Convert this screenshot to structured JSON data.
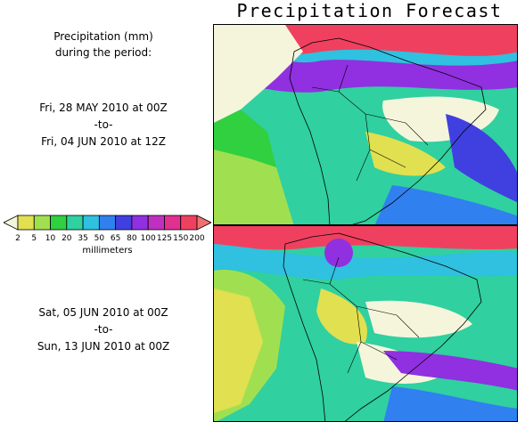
{
  "title": "Precipitation Forecast",
  "caption": {
    "line1": "Precipitation (mm)",
    "line2": "during the period:"
  },
  "period1": {
    "start": "Fri, 28 MAY 2010 at 00Z",
    "sep": "-to-",
    "end": "Fri, 04 JUN 2010 at 12Z"
  },
  "period2": {
    "start": "Sat, 05 JUN 2010 at 00Z",
    "sep": "-to-",
    "end": "Sun, 13 JUN 2010 at 00Z"
  },
  "legend": {
    "units": "millimeters",
    "ticks": [
      "2",
      "5",
      "10",
      "20",
      "35",
      "50",
      "65",
      "80",
      "100",
      "125",
      "150",
      "200"
    ],
    "colors": [
      "#f5f5dc",
      "#e0e050",
      "#a0e050",
      "#30d040",
      "#30d0a0",
      "#30c0e0",
      "#3080f0",
      "#4040e0",
      "#9030e0",
      "#c030c0",
      "#e03090",
      "#f04060",
      "#f07070"
    ]
  }
}
